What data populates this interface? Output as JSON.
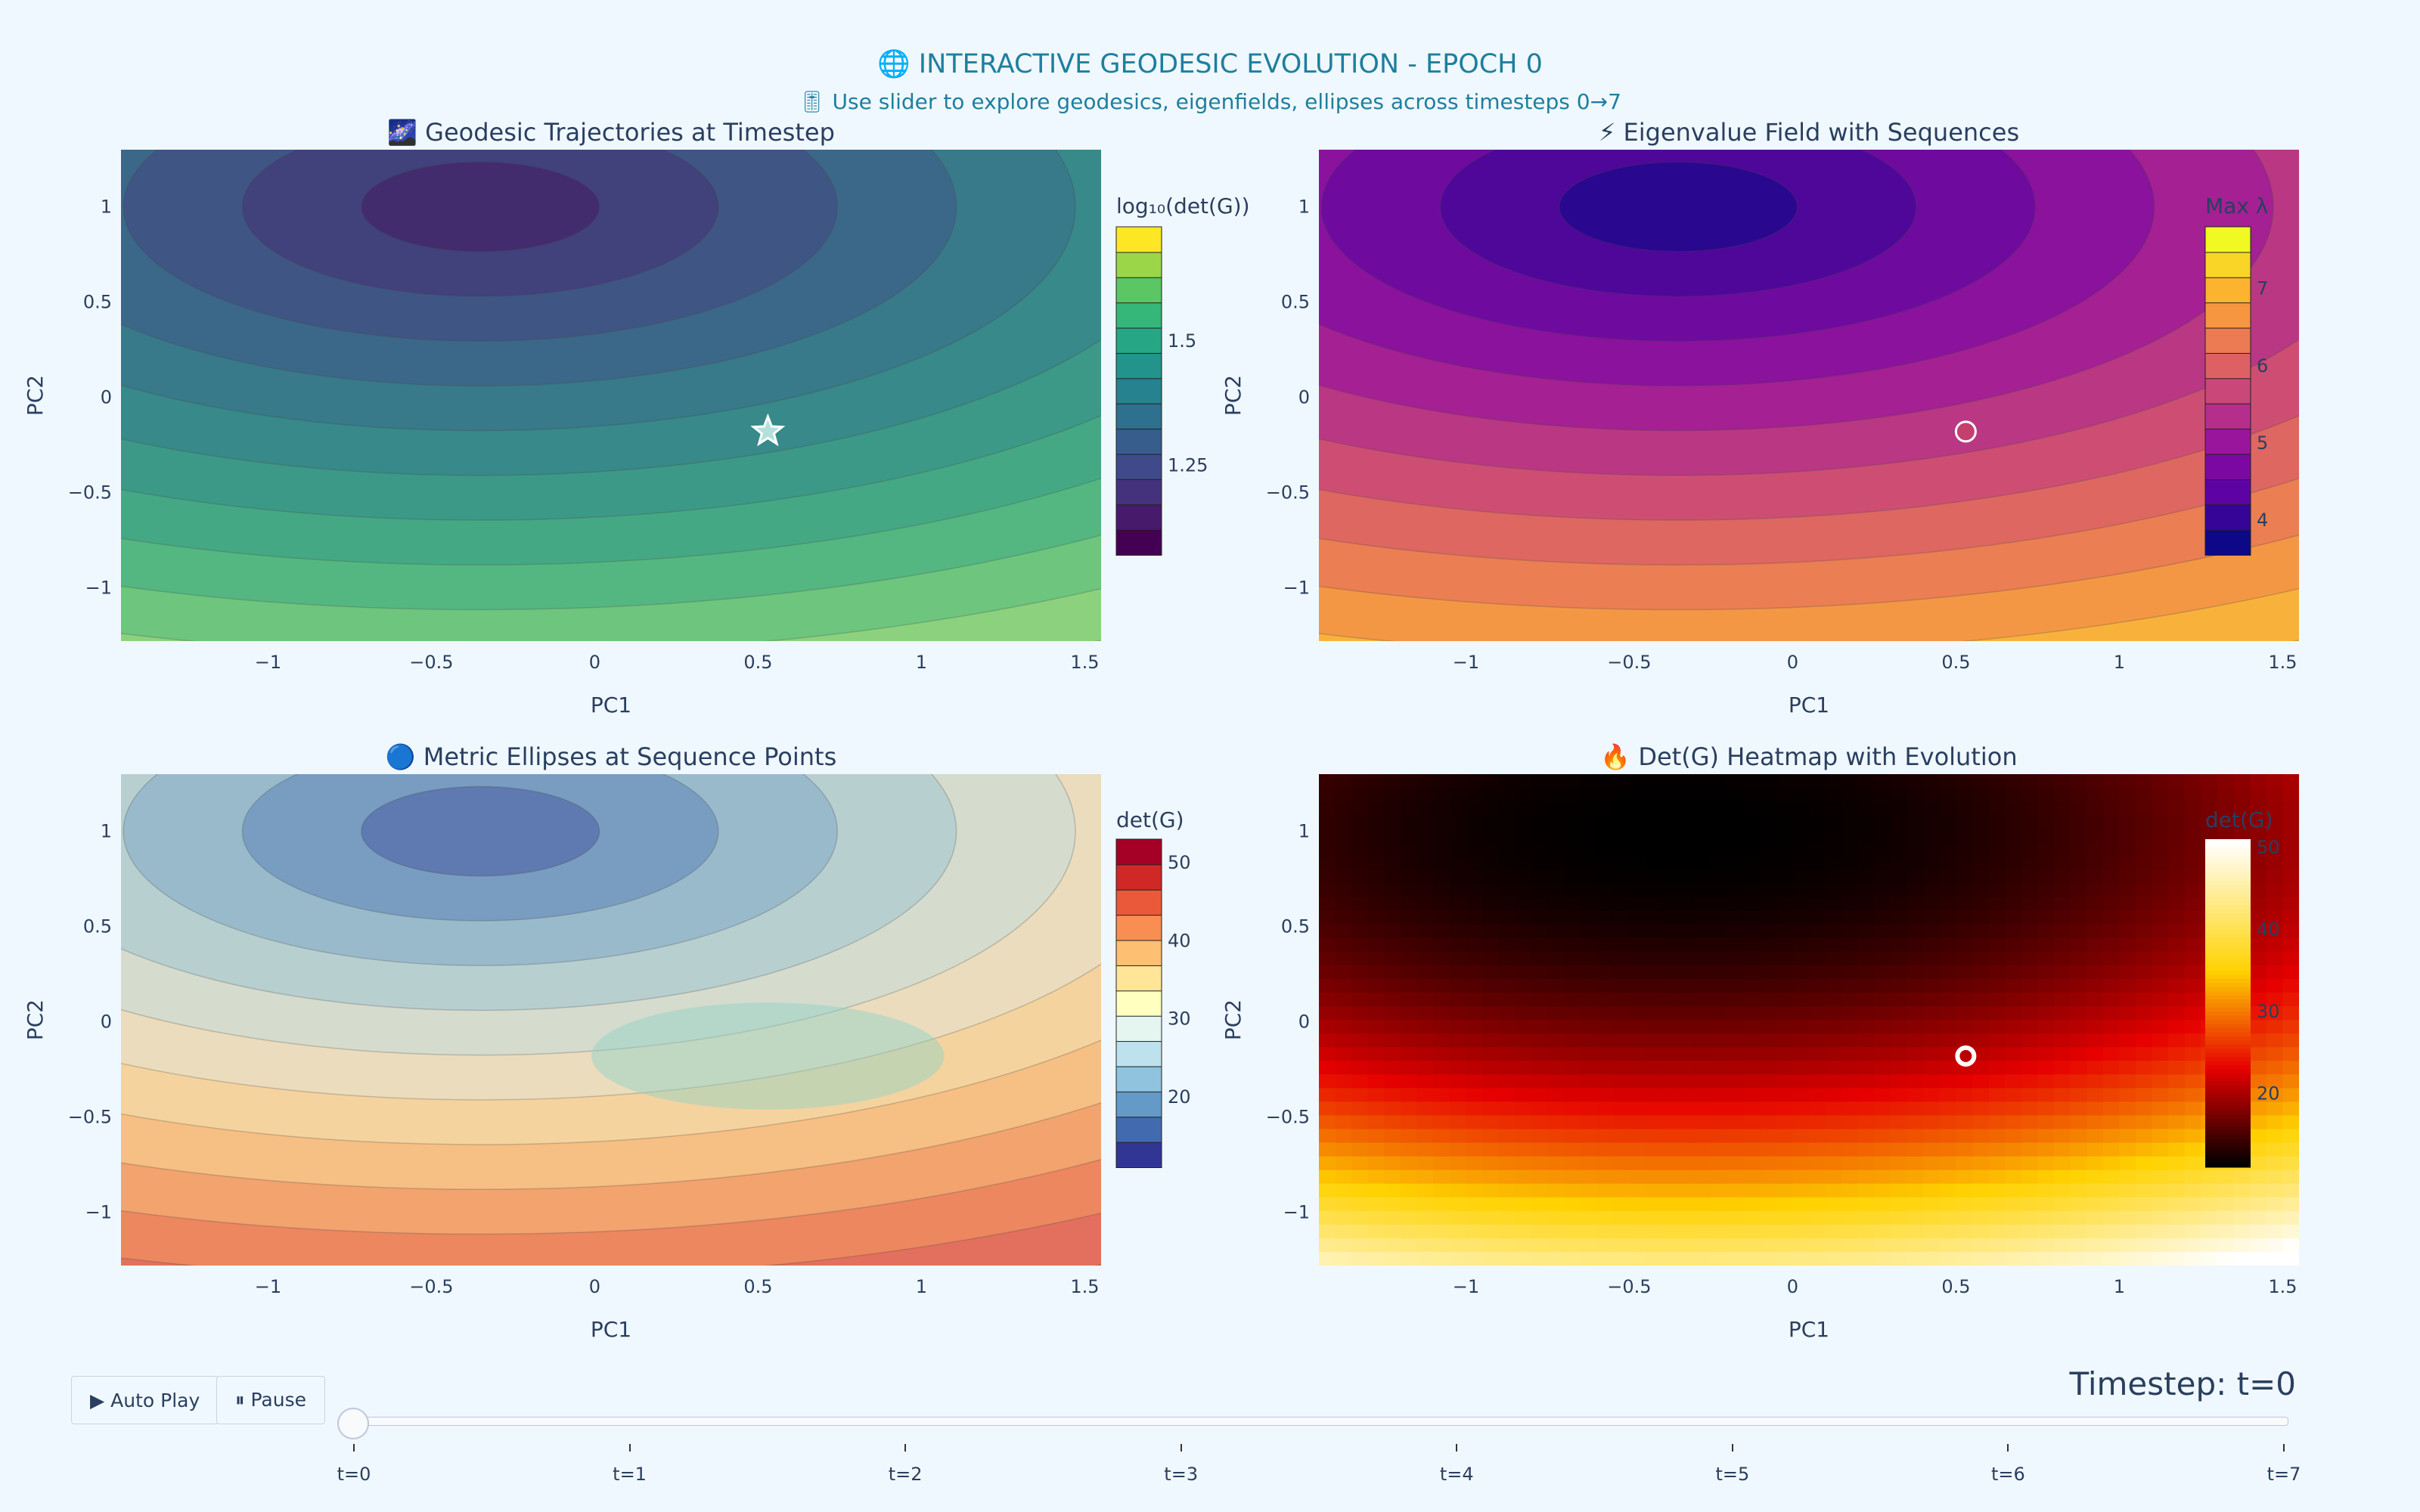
{
  "header": {
    "title": "🌐 INTERACTIVE GEODESIC EVOLUTION - EPOCH 0",
    "subtitle": "🎚 Use slider to explore geodesics, eigenfields, ellipses across timesteps 0→7"
  },
  "controls": {
    "play_label": "▶ Auto Play",
    "pause_label": "⏸ Pause",
    "timestep_label": "Timestep: t=0",
    "slider_steps": [
      "t=0",
      "t=1",
      "t=2",
      "t=3",
      "t=4",
      "t=5",
      "t=6",
      "t=7"
    ],
    "slider_value": 0
  },
  "colors": {
    "background": "#f0f8ff",
    "title": "#1e7f9e",
    "text": "#2a3f5f"
  },
  "chart_data": [
    {
      "type": "contour",
      "title": "🌌 Geodesic Trajectories at Timestep",
      "xlabel": "PC1",
      "ylabel": "PC2",
      "xlim": [
        -1.45,
        1.55
      ],
      "ylim": [
        -1.28,
        1.3
      ],
      "xticks": [
        -1,
        -0.5,
        0,
        0.5,
        1,
        1.5
      ],
      "yticks": [
        -1,
        -0.5,
        0,
        0.5,
        1
      ],
      "colorscale": "Viridis",
      "colorbar": {
        "title": "log₁₀(det(G))",
        "ticks": [
          1.25,
          1.5
        ],
        "range": [
          1.07,
          1.73
        ]
      },
      "field_center": [
        -0.35,
        1.0
      ],
      "marker": {
        "x": 0.53,
        "y": -0.18,
        "symbol": "star"
      }
    },
    {
      "type": "contour",
      "title": "⚡ Eigenvalue Field with Sequences",
      "xlabel": "PC1",
      "ylabel": "PC2",
      "xlim": [
        -1.45,
        1.55
      ],
      "ylim": [
        -1.28,
        1.3
      ],
      "xticks": [
        -1,
        -0.5,
        0,
        0.5,
        1,
        1.5
      ],
      "yticks": [
        -1,
        -0.5,
        0,
        0.5,
        1
      ],
      "colorscale": "Plasma",
      "colorbar": {
        "title": "Max λ",
        "ticks": [
          4,
          5,
          6,
          7
        ],
        "range": [
          3.55,
          7.8
        ]
      },
      "field_center": [
        -0.35,
        1.0
      ],
      "marker": {
        "x": 0.53,
        "y": -0.18,
        "symbol": "circle"
      }
    },
    {
      "type": "contour",
      "title": "🔵 Metric Ellipses at Sequence Points",
      "xlabel": "PC1",
      "ylabel": "PC2",
      "xlim": [
        -1.45,
        1.55
      ],
      "ylim": [
        -1.28,
        1.3
      ],
      "xticks": [
        -1,
        -0.5,
        0,
        0.5,
        1,
        1.5
      ],
      "yticks": [
        -1,
        -0.5,
        0,
        0.5,
        1
      ],
      "colorscale": "RdYlBu_r",
      "colorbar": {
        "title": "det(G)",
        "ticks": [
          20,
          30,
          40,
          50
        ],
        "range": [
          11,
          53
        ]
      },
      "field_center": [
        -0.35,
        1.0
      ],
      "ellipse": {
        "x": 0.53,
        "y": -0.18,
        "rx": 0.54,
        "ry": 0.54
      }
    },
    {
      "type": "heatmap",
      "title": "🔥 Det(G) Heatmap with Evolution",
      "xlabel": "PC1",
      "ylabel": "PC2",
      "xlim": [
        -1.45,
        1.55
      ],
      "ylim": [
        -1.28,
        1.3
      ],
      "xticks": [
        -1,
        -0.5,
        0,
        0.5,
        1,
        1.5
      ],
      "yticks": [
        -1,
        -0.5,
        0,
        0.5,
        1
      ],
      "colorscale": "Hot",
      "colorbar": {
        "title": "det(G)",
        "ticks": [
          20,
          30,
          40,
          50
        ],
        "range": [
          11,
          51
        ]
      },
      "field_center": [
        -0.35,
        1.0
      ],
      "marker": {
        "x": 0.53,
        "y": -0.18,
        "symbol": "circle-open"
      }
    }
  ]
}
